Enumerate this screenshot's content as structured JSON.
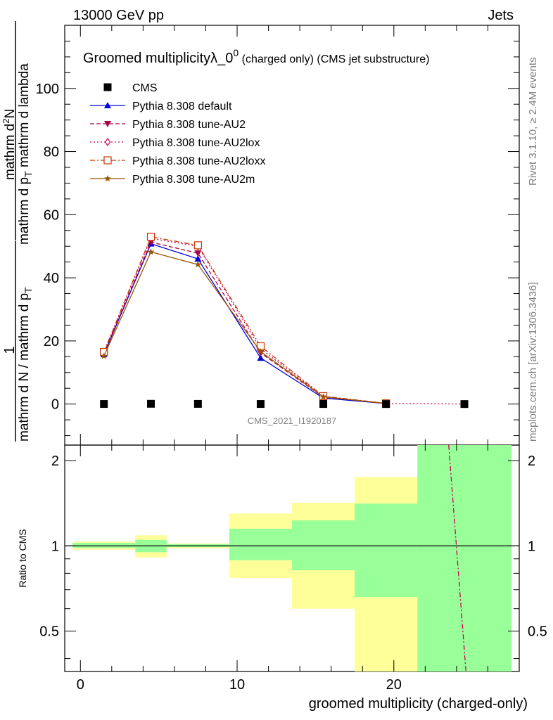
{
  "header": {
    "left": "13000 GeV pp",
    "right": "Jets"
  },
  "title": {
    "main": "Groomed multiplicityλ_0",
    "sup": "0",
    "tail": " (charged only) (CMS jet substructure)"
  },
  "side_labels": {
    "rivet": "Rivet 3.1.10, ≥ 2.4M events",
    "mcplots": "mcplots.cern.ch [arXiv:1306.3436]"
  },
  "watermark": "CMS_2021_I1920187",
  "ylabel_main": {
    "num_a": "mathrm d",
    "num_sup": "2",
    "num_b": "N",
    "den_a": "mathrm d p",
    "den_sub": "T",
    "den_b": " mathrm d lambda",
    "pre_num": "1",
    "pre_den_a": "mathrm d N / mathrm d p",
    "pre_den_sub": "T"
  },
  "ylabel_ratio": "Ratio to CMS",
  "xlabel": "groomed multiplicity (charged-only)",
  "colors": {
    "cms": "#000000",
    "default": "#0000dd",
    "au2": "#aa0044",
    "au2lox": "#cc0055",
    "au2loxx": "#cc3300",
    "au2m": "#995500",
    "band_inner": "#99ff99",
    "band_outer": "#ffff99"
  },
  "chart_data": [
    {
      "type": "line",
      "panel": "main",
      "xlim": [
        -1,
        28
      ],
      "ylim": [
        -13,
        120
      ],
      "yticks": [
        0,
        20,
        40,
        60,
        80,
        100
      ],
      "grid": false,
      "legend_position": "top-left",
      "series": [
        {
          "name": "CMS",
          "key": "cms",
          "marker": "square",
          "line": "none",
          "x": [
            1.5,
            4.5,
            7.5,
            11.5,
            15.5,
            19.5,
            24.5
          ],
          "y": [
            0.02,
            0.08,
            0.05,
            0.02,
            0.01,
            0.001,
            0.0001
          ]
        },
        {
          "name": "Pythia 8.308 default",
          "key": "default",
          "marker": "triangle-up",
          "line": "solid",
          "x": [
            1.5,
            4.5,
            7.5,
            11.5,
            15.5,
            19.5,
            24.5
          ],
          "y": [
            15.7,
            50.8,
            46.0,
            14.6,
            1.9,
            0.15,
            0.01
          ]
        },
        {
          "name": "Pythia 8.308 tune-AU2",
          "key": "au2",
          "marker": "triangle-down",
          "line": "dashed",
          "x": [
            1.5,
            4.5,
            7.5,
            11.5,
            15.5,
            19.5,
            24.5
          ],
          "y": [
            16.0,
            51.3,
            47.8,
            16.2,
            2.2,
            0.18,
            0.01
          ]
        },
        {
          "name": "Pythia 8.308 tune-AU2lox",
          "key": "au2lox",
          "marker": "diamond-open",
          "line": "dotted",
          "x": [
            1.5,
            4.5,
            7.5,
            11.5,
            15.5,
            19.5,
            24.5
          ],
          "y": [
            16.2,
            52.5,
            50.0,
            17.5,
            2.4,
            0.2,
            0.01
          ]
        },
        {
          "name": "Pythia 8.308 tune-AU2loxx",
          "key": "au2loxx",
          "marker": "square-open",
          "line": "dashdot",
          "x": [
            1.5,
            4.5,
            7.5,
            11.5,
            15.5,
            19.5,
            24.5
          ],
          "y": [
            16.5,
            53.0,
            50.3,
            18.3,
            2.5,
            0.22,
            0.01
          ]
        },
        {
          "name": "Pythia 8.308 tune-AU2m",
          "key": "au2m",
          "marker": "star",
          "line": "solid",
          "x": [
            1.5,
            4.5,
            7.5,
            11.5,
            15.5,
            19.5,
            24.5
          ],
          "y": [
            15.2,
            48.2,
            44.2,
            16.6,
            2.3,
            0.18,
            0.01
          ]
        }
      ]
    },
    {
      "type": "area",
      "panel": "ratio",
      "xlim": [
        -1,
        28
      ],
      "ylim": [
        0.36,
        2.27
      ],
      "xticks": [
        0,
        10,
        20
      ],
      "yticks": [
        0.5,
        1,
        2
      ],
      "reference_line": 1,
      "bins": [
        {
          "x_low": -0.5,
          "x_high": 3.5,
          "inner": [
            0.985,
            1.025
          ],
          "outer": [
            0.97,
            1.035
          ]
        },
        {
          "x_low": 3.5,
          "x_high": 5.5,
          "inner": [
            0.95,
            1.05
          ],
          "outer": [
            0.91,
            1.09
          ]
        },
        {
          "x_low": 5.5,
          "x_high": 9.5,
          "inner": [
            0.99,
            1.015
          ],
          "outer": [
            0.98,
            1.02
          ]
        },
        {
          "x_low": 9.5,
          "x_high": 13.5,
          "inner": [
            0.89,
            1.15
          ],
          "outer": [
            0.77,
            1.3
          ]
        },
        {
          "x_low": 13.5,
          "x_high": 17.5,
          "inner": [
            0.82,
            1.23
          ],
          "outer": [
            0.6,
            1.42
          ]
        },
        {
          "x_low": 17.5,
          "x_high": 21.5,
          "inner": [
            0.66,
            1.41
          ],
          "outer": [
            0.36,
            1.75
          ]
        },
        {
          "x_low": 21.5,
          "x_high": 27.5,
          "inner": [
            0.36,
            2.27
          ],
          "outer": [
            0.36,
            2.27
          ]
        }
      ],
      "ratio_curve": {
        "key": "au2lox",
        "line": "dashdot",
        "points": [
          [
            23.5,
            2.27
          ],
          [
            24.6,
            0.36
          ]
        ]
      }
    }
  ]
}
